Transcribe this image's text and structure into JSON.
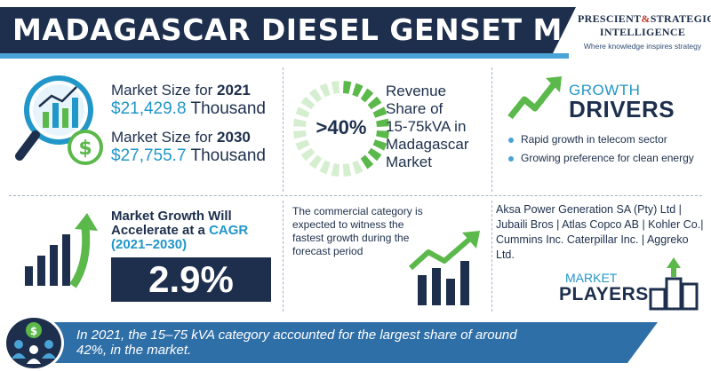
{
  "header": {
    "title": "MADAGASCAR DIESEL GENSET MARKET",
    "logo_line1_a": "PRESCIENT",
    "logo_amp": "&",
    "logo_line1_b": "STRATEGIC",
    "logo_line2": "INTELLIGENCE",
    "logo_tagline": "Where knowledge inspires strategy"
  },
  "market_size": {
    "label_2021": "Market Size for ",
    "year_2021": "2021",
    "value_2021": "$21,429.8",
    "unit_2021": " Thousand",
    "label_2030": "Market Size for ",
    "year_2030": "2030",
    "value_2030": "$27,755.7",
    "unit_2030": " Thousand"
  },
  "revenue_share": {
    "percent": ">40%",
    "line1": "Revenue",
    "line2": "Share of",
    "line3": "15-75kVA in",
    "line4": "Madagascar",
    "line5": "Market",
    "share_fraction": 0.42
  },
  "growth_drivers": {
    "title_top": "GROWTH",
    "title_bottom": "DRIVERS",
    "items": [
      "Rapid growth in telecom sector",
      "Growing preference for clean energy"
    ]
  },
  "cagr": {
    "line1": "Market Growth Will",
    "line2a": "Accelerate at a ",
    "line2b": "CAGR",
    "period": "(2021–2030)",
    "value": "2.9%"
  },
  "commercial": {
    "text": "The commercial category is expected to witness the fastest growth during the forecast period"
  },
  "players": {
    "list": "Aksa Power Generation SA (Pty) Ltd | Jubaili Bros | Atlas Copco AB | Kohler Co.| Cummins Inc. Caterpillar Inc. | Aggreko Ltd.",
    "title_top": "MARKET",
    "title_bottom": "PLAYERS"
  },
  "footer": {
    "text": "In 2021, the 15–75 kVA category accounted for the largest share of around 42%, in the market."
  },
  "colors": {
    "navy": "#1d2f4c",
    "blue": "#2196c9",
    "green": "#5bb84a",
    "light_blue": "#4aa3d6"
  },
  "icons": [
    "magnifier-chart-icon",
    "dollar-coin-icon",
    "donut-chart-icon",
    "growth-arrow-icon",
    "bar-growth-icon",
    "bar-chart-arrow-icon",
    "podium-icon",
    "money-bag-people-icon"
  ]
}
